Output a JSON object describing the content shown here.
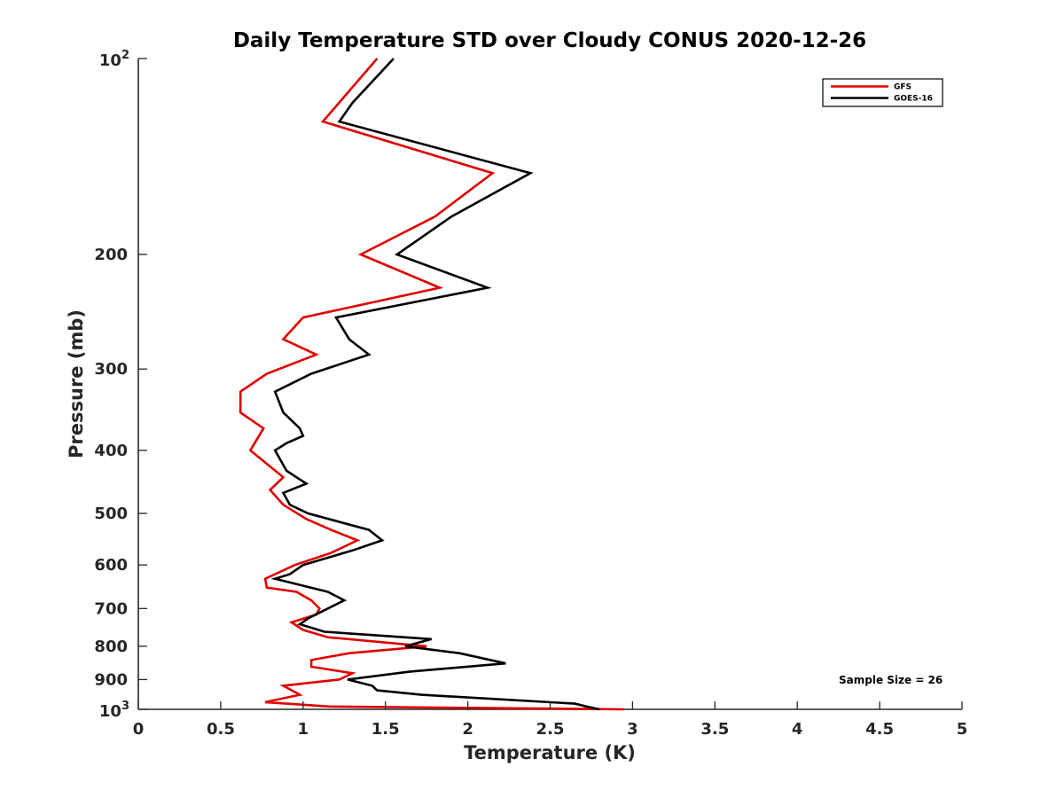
{
  "chart_data": {
    "type": "line",
    "title": "Daily Temperature STD over Cloudy CONUS 2020-12-26",
    "xlabel": "Temperature (K)",
    "ylabel": "Pressure (mb)",
    "xlim": [
      0,
      5
    ],
    "ylim": [
      100,
      1000
    ],
    "yscale": "log",
    "y_reversed": true,
    "x_ticks": [
      0,
      0.5,
      1,
      1.5,
      2,
      2.5,
      3,
      3.5,
      4,
      4.5,
      5
    ],
    "x_tick_labels": [
      "0",
      "0.5",
      "1",
      "1.5",
      "2",
      "2.5",
      "3",
      "3.5",
      "4",
      "4.5",
      "5"
    ],
    "y_ticks": [
      200,
      300,
      400,
      500,
      600,
      700,
      800,
      900
    ],
    "y_tick_labels": [
      "200",
      "300",
      "400",
      "500",
      "600",
      "700",
      "800",
      "900"
    ],
    "y_decade_ticks": [
      {
        "value": 100,
        "base": "10",
        "exp": "2"
      },
      {
        "value": 1000,
        "base": "10",
        "exp": "3"
      }
    ],
    "grid": false,
    "legend_position": "top-right",
    "series": [
      {
        "name": "GFS",
        "color": "#e00000",
        "points": [
          [
            1.45,
            100
          ],
          [
            1.12,
            125
          ],
          [
            2.15,
            150
          ],
          [
            1.8,
            175
          ],
          [
            1.35,
            200
          ],
          [
            1.83,
            225
          ],
          [
            1.0,
            250
          ],
          [
            0.88,
            270
          ],
          [
            1.08,
            285
          ],
          [
            0.78,
            305
          ],
          [
            0.62,
            325
          ],
          [
            0.62,
            350
          ],
          [
            0.76,
            370
          ],
          [
            0.68,
            400
          ],
          [
            0.88,
            440
          ],
          [
            0.8,
            460
          ],
          [
            0.88,
            485
          ],
          [
            1.02,
            510
          ],
          [
            1.17,
            530
          ],
          [
            1.33,
            550
          ],
          [
            1.17,
            575
          ],
          [
            0.95,
            600
          ],
          [
            0.77,
            630
          ],
          [
            0.78,
            650
          ],
          [
            0.96,
            660
          ],
          [
            1.05,
            680
          ],
          [
            1.1,
            700
          ],
          [
            1.08,
            715
          ],
          [
            0.93,
            735
          ],
          [
            1.0,
            755
          ],
          [
            1.15,
            775
          ],
          [
            1.75,
            800
          ],
          [
            1.28,
            820
          ],
          [
            1.05,
            840
          ],
          [
            1.05,
            860
          ],
          [
            1.3,
            880
          ],
          [
            1.22,
            900
          ],
          [
            0.88,
            920
          ],
          [
            0.98,
            950
          ],
          [
            0.77,
            975
          ],
          [
            1.16,
            990
          ],
          [
            2.95,
            1000
          ]
        ]
      },
      {
        "name": "GOES-16",
        "color": "#000000",
        "points": [
          [
            1.55,
            100
          ],
          [
            1.3,
            117
          ],
          [
            1.22,
            125
          ],
          [
            2.38,
            150
          ],
          [
            1.9,
            175
          ],
          [
            1.57,
            200
          ],
          [
            2.12,
            225
          ],
          [
            1.2,
            250
          ],
          [
            1.28,
            270
          ],
          [
            1.4,
            285
          ],
          [
            1.05,
            305
          ],
          [
            0.83,
            325
          ],
          [
            0.88,
            350
          ],
          [
            0.98,
            370
          ],
          [
            1.0,
            380
          ],
          [
            0.9,
            390
          ],
          [
            0.83,
            400
          ],
          [
            0.9,
            430
          ],
          [
            1.02,
            450
          ],
          [
            0.88,
            465
          ],
          [
            0.92,
            485
          ],
          [
            1.03,
            500
          ],
          [
            1.4,
            530
          ],
          [
            1.48,
            550
          ],
          [
            1.3,
            570
          ],
          [
            1.0,
            600
          ],
          [
            0.92,
            620
          ],
          [
            0.83,
            630
          ],
          [
            1.15,
            660
          ],
          [
            1.25,
            680
          ],
          [
            1.15,
            700
          ],
          [
            1.03,
            725
          ],
          [
            0.98,
            740
          ],
          [
            1.13,
            760
          ],
          [
            1.78,
            780
          ],
          [
            1.62,
            800
          ],
          [
            1.95,
            820
          ],
          [
            2.23,
            850
          ],
          [
            1.65,
            875
          ],
          [
            1.27,
            900
          ],
          [
            1.42,
            920
          ],
          [
            1.45,
            935
          ],
          [
            1.72,
            950
          ],
          [
            2.65,
            980
          ],
          [
            2.72,
            990
          ],
          [
            2.8,
            1000
          ]
        ]
      }
    ],
    "annotations": [
      {
        "text": "Sample Size = 26",
        "position": "bottom-right"
      }
    ]
  }
}
